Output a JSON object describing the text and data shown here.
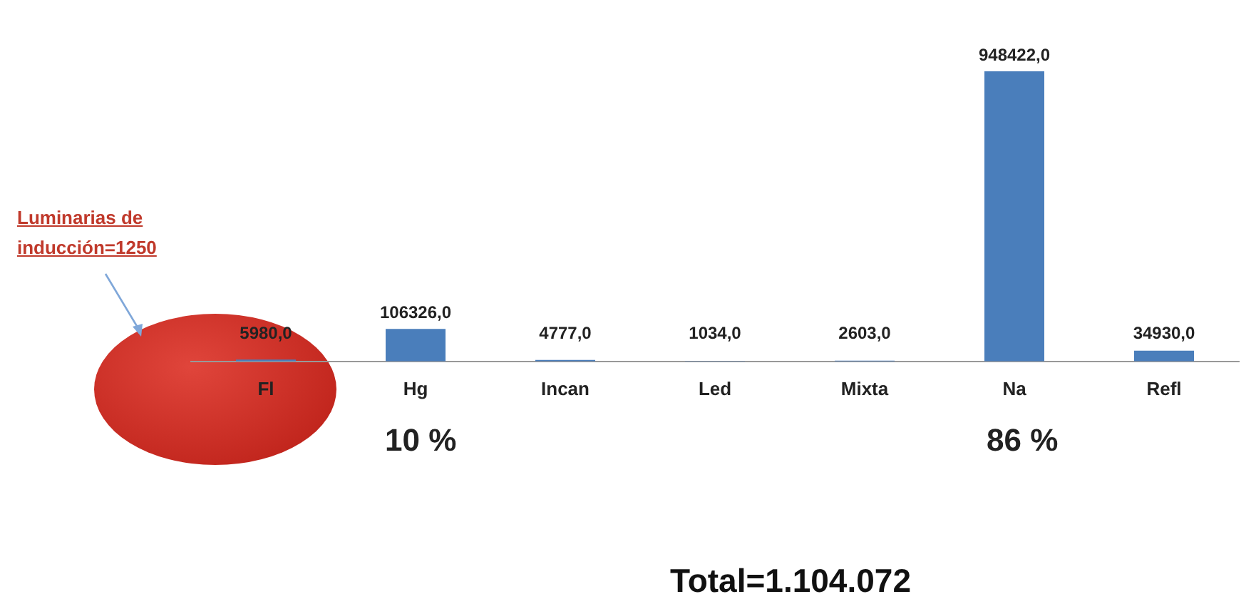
{
  "chart_data": {
    "type": "bar",
    "categories": [
      "Fl",
      "Hg",
      "Incan",
      "Led",
      "Mixta",
      "Na",
      "Refl"
    ],
    "values": [
      5980,
      106326,
      4777,
      1034,
      2603,
      948422,
      34930
    ],
    "value_labels": [
      "5980,0",
      "106326,0",
      "4777,0",
      "1034,0",
      "2603,0",
      "948422,0",
      "34930,0"
    ],
    "color": "#4a7ebb",
    "grid": false,
    "legend": false,
    "tick_labels": "x",
    "annotations": [
      "Luminarias de inducción=1250",
      "10 %",
      "86 %",
      "Total=1.104.072"
    ]
  }
}
